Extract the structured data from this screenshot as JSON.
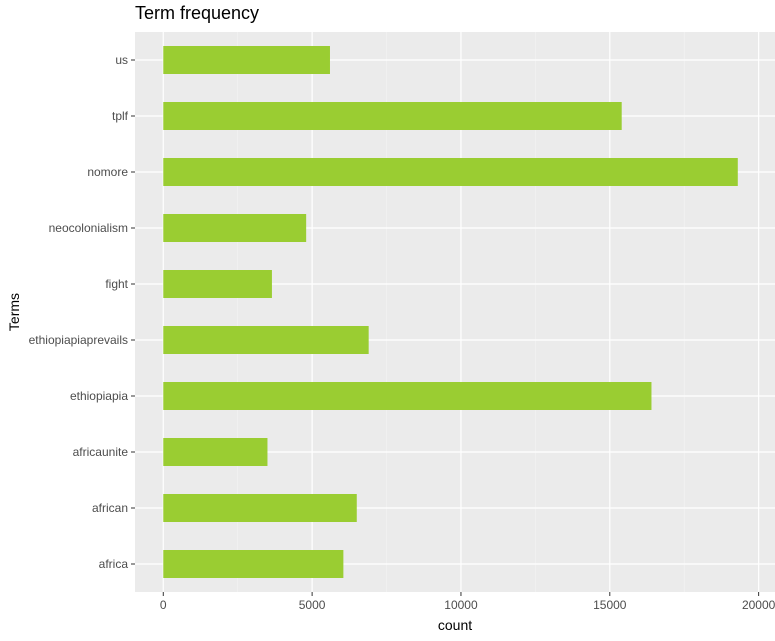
{
  "chart_data": {
    "type": "bar",
    "orientation": "horizontal",
    "title": "Term frequency",
    "xlabel": "count",
    "ylabel": "Terms",
    "categories": [
      "africa",
      "african",
      "africaunite",
      "ethiopiapia",
      "ethiopiapiaprevails",
      "fight",
      "neocolonialism",
      "nomore",
      "tplf",
      "us"
    ],
    "values": [
      6050,
      6500,
      3500,
      16400,
      6900,
      3650,
      4800,
      19300,
      15400,
      5600
    ],
    "xlim": [
      -950,
      20550
    ],
    "xticks": [
      0,
      5000,
      10000,
      15000,
      20000
    ],
    "xtick_labels": [
      "0",
      "5000",
      "10000",
      "15000",
      "20000"
    ],
    "grid": true,
    "legend": "none",
    "colors": {
      "bar": "#9acd32",
      "panel": "#ebebeb",
      "grid_major": "#ffffff",
      "grid_minor": "#f4f4f4"
    }
  }
}
